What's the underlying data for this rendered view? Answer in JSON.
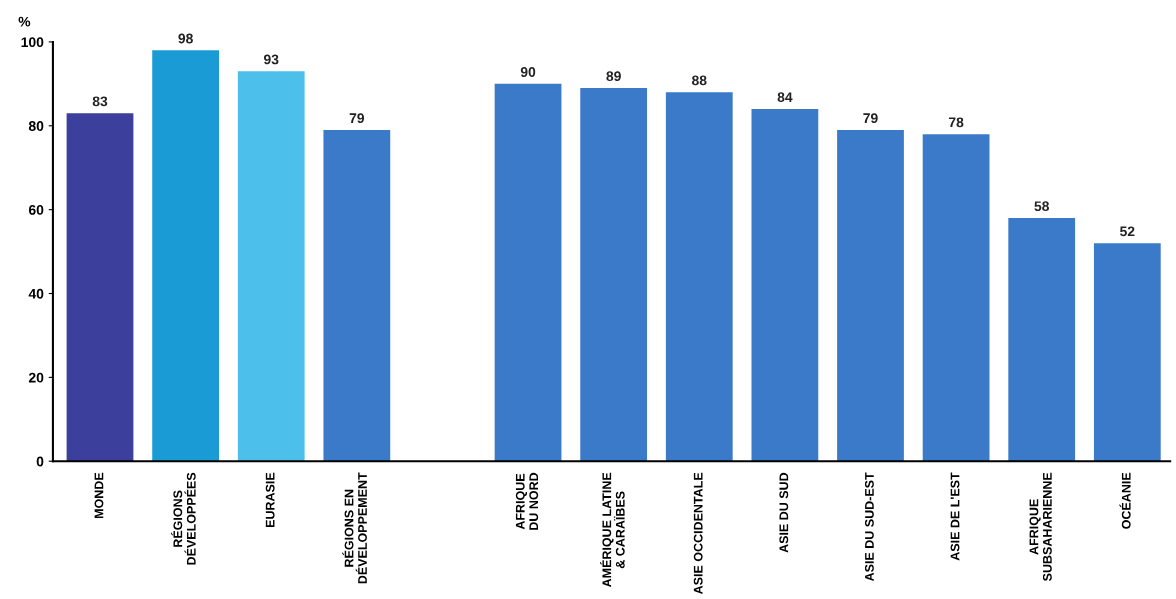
{
  "chart_data": {
    "type": "bar",
    "ylabel": "%",
    "categories": [
      "MONDE",
      "RÉGIONS\nDÉVELOPPÉES",
      "EURASIE",
      "RÉGIONS EN\nDÉVELOPPEMENT",
      null,
      "AFRIQUE\nDU NORD",
      "AMÉRIQUE LATINE\n& CARAÏBES",
      "ASIE OCCIDENTALE",
      "ASIE DU SUD",
      "ASIE DU SUD-EST",
      "ASIE DE L'EST",
      "AFRIQUE\nSUBSAHARIENNE",
      "OCÉANIE"
    ],
    "values": [
      83,
      98,
      93,
      79,
      null,
      90,
      89,
      88,
      84,
      79,
      78,
      58,
      52
    ],
    "colors": [
      "#3d3f9c",
      "#1a9bd6",
      "#4cc0ea",
      "#3a7ac8",
      "#3a7ac8",
      "#3a7ac8",
      "#3a7ac8",
      "#3a7ac8",
      "#3a7ac8",
      "#3a7ac8",
      "#3a7ac8",
      "#3a7ac8",
      "#3a7ac8"
    ],
    "ylim": [
      0,
      100
    ],
    "yticks": [
      0,
      20,
      40,
      60,
      80,
      100
    ],
    "data_labels": true,
    "grid": false,
    "legend": false
  }
}
